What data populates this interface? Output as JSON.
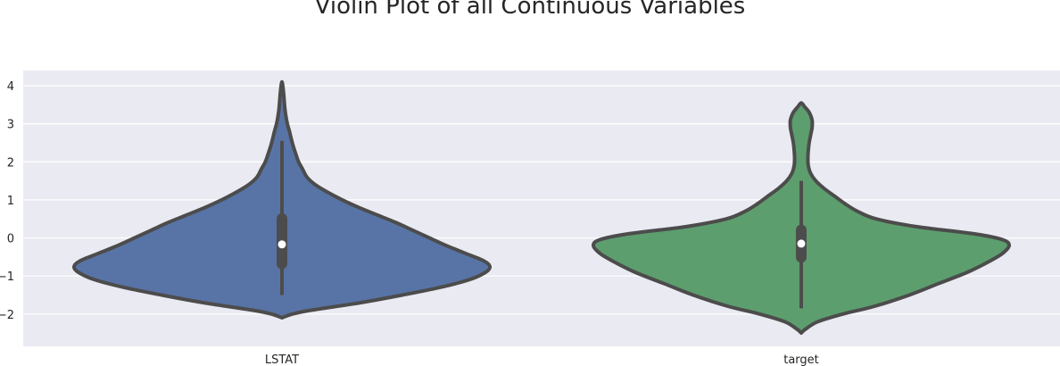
{
  "chart_data": {
    "type": "violin",
    "title": "Violin Plot of all Continuous Variables",
    "xlabel": "",
    "ylabel": "",
    "categories": [
      "LSTAT",
      "target"
    ],
    "ylim": [
      -2.85,
      4.4
    ],
    "yticks": [
      -2,
      -1,
      0,
      1,
      2,
      3,
      4
    ],
    "ytick_labels": [
      "−2",
      "−1",
      "0",
      "1",
      "2",
      "3",
      "4"
    ],
    "grid": true,
    "colors": {
      "background": "#EAEAF2",
      "grid": "#FFFFFF",
      "outline": "#4C4C4C"
    },
    "series": [
      {
        "name": "LSTAT",
        "color": "#5874A6",
        "min": -1.5,
        "q1": -0.82,
        "median": -0.17,
        "q3": 0.65,
        "max": 2.55,
        "density_profile": [
          [
            -2.1,
            0.0
          ],
          [
            -2.0,
            0.05
          ],
          [
            -1.9,
            0.14
          ],
          [
            -1.7,
            0.38
          ],
          [
            -1.5,
            0.58
          ],
          [
            -1.3,
            0.76
          ],
          [
            -1.1,
            0.9
          ],
          [
            -0.9,
            0.98
          ],
          [
            -0.75,
            1.0
          ],
          [
            -0.6,
            0.97
          ],
          [
            -0.4,
            0.88
          ],
          [
            -0.2,
            0.79
          ],
          [
            0.0,
            0.71
          ],
          [
            0.2,
            0.63
          ],
          [
            0.4,
            0.55
          ],
          [
            0.6,
            0.46
          ],
          [
            0.8,
            0.37
          ],
          [
            1.0,
            0.29
          ],
          [
            1.2,
            0.22
          ],
          [
            1.4,
            0.16
          ],
          [
            1.6,
            0.12
          ],
          [
            1.8,
            0.1
          ],
          [
            2.0,
            0.08
          ],
          [
            2.2,
            0.067
          ],
          [
            2.4,
            0.055
          ],
          [
            2.6,
            0.045
          ],
          [
            2.8,
            0.036
          ],
          [
            3.0,
            0.026
          ],
          [
            3.2,
            0.019
          ],
          [
            3.4,
            0.014
          ],
          [
            3.6,
            0.011
          ],
          [
            3.8,
            0.008
          ],
          [
            4.0,
            0.004
          ],
          [
            4.1,
            0.0
          ]
        ]
      },
      {
        "name": "target",
        "color": "#5D9E6E",
        "min": -1.85,
        "q1": -0.65,
        "median": -0.15,
        "q3": 0.35,
        "max": 1.5,
        "density_profile": [
          [
            -2.5,
            0.0
          ],
          [
            -2.4,
            0.02
          ],
          [
            -2.2,
            0.08
          ],
          [
            -2.0,
            0.2
          ],
          [
            -1.8,
            0.35
          ],
          [
            -1.5,
            0.52
          ],
          [
            -1.2,
            0.66
          ],
          [
            -0.9,
            0.8
          ],
          [
            -0.6,
            0.91
          ],
          [
            -0.4,
            0.97
          ],
          [
            -0.2,
            1.0
          ],
          [
            -0.05,
            0.97
          ],
          [
            0.1,
            0.84
          ],
          [
            0.3,
            0.55
          ],
          [
            0.5,
            0.36
          ],
          [
            0.7,
            0.27
          ],
          [
            0.9,
            0.21
          ],
          [
            1.1,
            0.16
          ],
          [
            1.3,
            0.11
          ],
          [
            1.5,
            0.07
          ],
          [
            1.7,
            0.045
          ],
          [
            1.9,
            0.034
          ],
          [
            2.1,
            0.032
          ],
          [
            2.3,
            0.034
          ],
          [
            2.5,
            0.038
          ],
          [
            2.7,
            0.045
          ],
          [
            2.9,
            0.052
          ],
          [
            3.1,
            0.052
          ],
          [
            3.3,
            0.038
          ],
          [
            3.45,
            0.016
          ],
          [
            3.55,
            0.0
          ]
        ]
      }
    ]
  }
}
